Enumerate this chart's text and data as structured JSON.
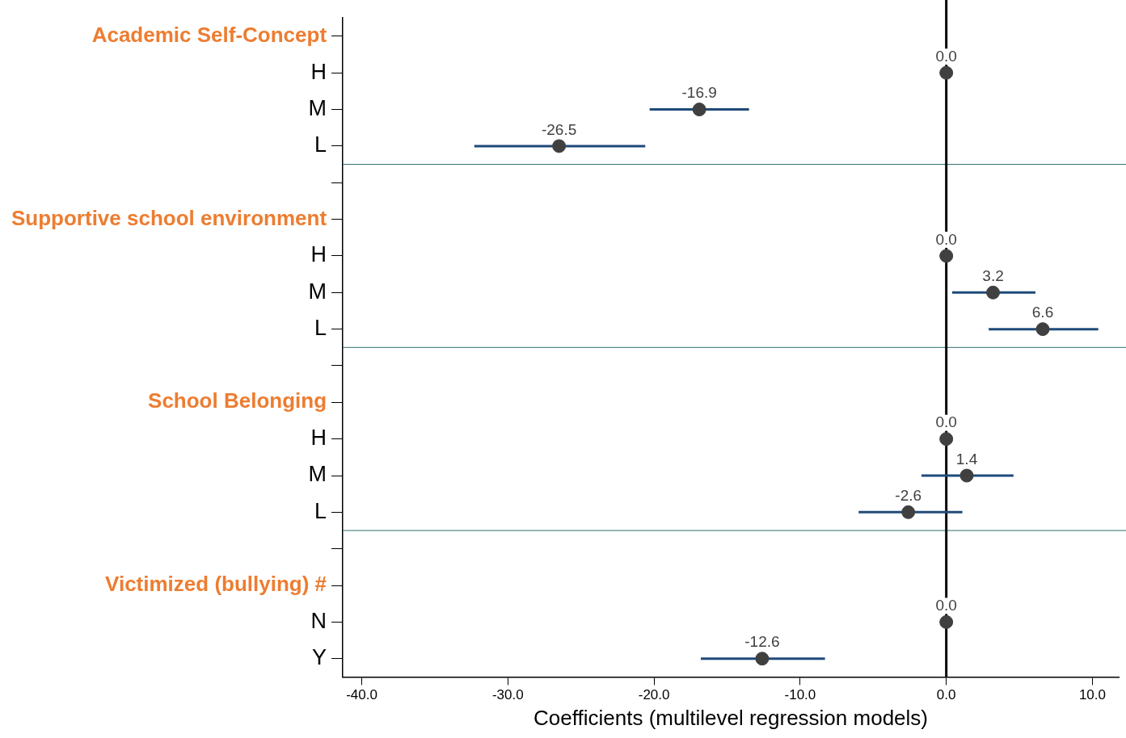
{
  "chart_data": {
    "type": "scatter",
    "orientation": "horizontal",
    "categories": [
      "Academic Self-Concept",
      "H",
      "M",
      "L",
      null,
      "Supportive school environment",
      "H",
      "M",
      "L",
      null,
      "School Belonging",
      "H",
      "M",
      "L",
      null,
      "Victimized (bullying) #",
      "N",
      "Y"
    ],
    "values": [
      null,
      0,
      -16.9,
      -26.5,
      null,
      null,
      0,
      3.2,
      6.6,
      null,
      null,
      0,
      1.4,
      -2.6,
      null,
      null,
      0,
      -12.6
    ],
    "value_labels": [
      null,
      "0.0",
      "-16.9",
      "-26.5",
      null,
      null,
      "0.0",
      "3.2",
      "6.6",
      null,
      null,
      "0.0",
      "1.4",
      "-2.6",
      null,
      null,
      "0.0",
      "-12.6"
    ],
    "errors": [
      null,
      null,
      [
        -20.3,
        -13.5
      ],
      [
        -32.3,
        -20.6
      ],
      null,
      null,
      null,
      [
        0.4,
        6.1
      ],
      [
        2.9,
        10.4
      ],
      null,
      null,
      null,
      [
        -1.7,
        4.6
      ],
      [
        -6.0,
        1.1
      ],
      null,
      null,
      null,
      [
        -16.8,
        -8.3
      ]
    ],
    "color": "#404040",
    "marker": "circle",
    "xlim": [
      -41.3,
      11.8
    ],
    "xticks": [
      {
        "value": -40,
        "label": "-40.0"
      },
      {
        "value": -30,
        "label": "-30.0"
      },
      {
        "value": -20,
        "label": "-20.0"
      },
      {
        "value": -10,
        "label": "-10.0"
      },
      {
        "value": 0,
        "label": "0.0"
      },
      {
        "value": 10,
        "label": "10.0"
      }
    ],
    "xlabel": "Coefficients (multilevel regression models)",
    "ref_lines": [
      {
        "axis": "x",
        "value": 0,
        "color": "#000000"
      }
    ]
  }
}
